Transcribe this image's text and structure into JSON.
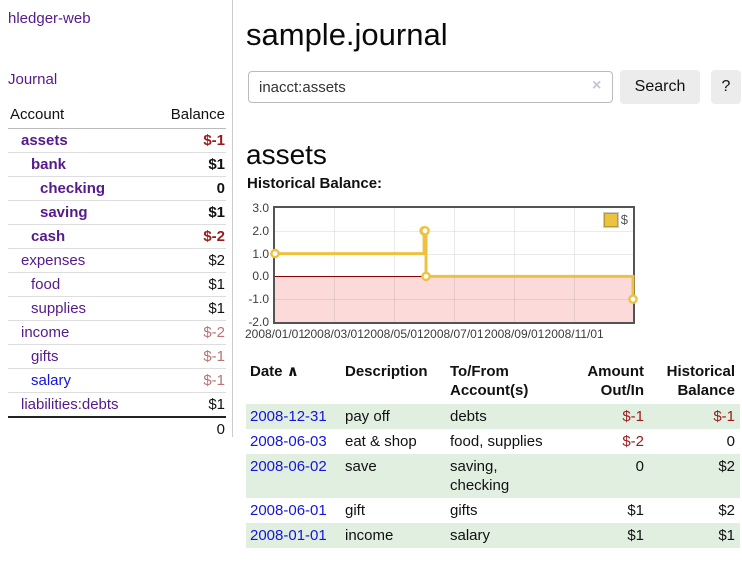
{
  "app": {
    "title": "hledger-web"
  },
  "sidebar": {
    "journal_link": "Journal",
    "accounts": {
      "headers": {
        "account": "Account",
        "balance": "Balance"
      },
      "rows": [
        {
          "account": "assets",
          "level": 1,
          "bold": true,
          "balance": "$-1",
          "balance_style": "neg"
        },
        {
          "account": "bank",
          "level": 2,
          "bold": true,
          "balance": "$1",
          "balance_style": "pos"
        },
        {
          "account": "checking",
          "level": 3,
          "bold": true,
          "balance": "0",
          "balance_style": "pos"
        },
        {
          "account": "saving",
          "level": 3,
          "bold": true,
          "balance": "$1",
          "balance_style": "pos"
        },
        {
          "account": "cash",
          "level": 2,
          "bold": true,
          "balance": "$-2",
          "balance_style": "neg"
        },
        {
          "account": "expenses",
          "level": 1,
          "bold": false,
          "balance": "$2",
          "balance_style": "pos"
        },
        {
          "account": "food",
          "level": 2,
          "bold": false,
          "balance": "$1",
          "balance_style": "pos"
        },
        {
          "account": "supplies",
          "level": 2,
          "bold": false,
          "balance": "$1",
          "balance_style": "pos"
        },
        {
          "account": "income",
          "level": 1,
          "bold": false,
          "balance": "$-2",
          "balance_style": "neg-soft"
        },
        {
          "account": "gifts",
          "level": 2,
          "bold": false,
          "balance": "$-1",
          "balance_style": "neg-soft"
        },
        {
          "account": "salary",
          "level": 2,
          "bold": false,
          "link_style": "unvisited",
          "balance": "$-1",
          "balance_style": "neg-soft"
        },
        {
          "account": "liabilities:debts",
          "level": 1,
          "bold": false,
          "balance": "$1",
          "balance_style": "pos"
        }
      ],
      "total": "0"
    }
  },
  "header": {
    "title": "sample.journal"
  },
  "search": {
    "value": "inacct:assets",
    "clear_icon": "×",
    "button_label": "Search",
    "help_label": "?"
  },
  "account_page": {
    "heading": "assets",
    "chart_label": "Historical Balance:"
  },
  "chart_data": {
    "type": "line",
    "title": "Historical Balance:",
    "step": true,
    "series": [
      {
        "name": "$",
        "points": [
          [
            "2008-01-01",
            1
          ],
          [
            "2008-06-01",
            2
          ],
          [
            "2008-06-02",
            2
          ],
          [
            "2008-06-03",
            0
          ],
          [
            "2008-12-31",
            -1
          ]
        ]
      }
    ],
    "x_range": [
      "2008-01-01",
      "2008-12-31"
    ],
    "ylim": [
      -2,
      3
    ],
    "y_ticks": [
      "3.0",
      "2.0",
      "1.0",
      "0.0",
      "-1.0",
      "-2.0"
    ],
    "x_ticks": [
      "2008/01/01",
      "2008/03/01",
      "2008/05/01",
      "2008/07/01",
      "2008/09/01",
      "2008/11/01"
    ],
    "legend": {
      "label": "$",
      "position": "top-right"
    },
    "grid": true,
    "negative_region_shaded": true
  },
  "register": {
    "columns": [
      "Date",
      "Description",
      "To/From Account(s)",
      "Amount Out/In",
      "Historical Balance"
    ],
    "sort_icon": "∧",
    "rows": [
      {
        "date": "2008-12-31",
        "description": "pay off",
        "accounts": "debts",
        "amount": "$-1",
        "amount_style": "neg",
        "balance": "$-1",
        "balance_style": "neg"
      },
      {
        "date": "2008-06-03",
        "description": "eat & shop",
        "accounts": "food, supplies",
        "amount": "$-2",
        "amount_style": "neg",
        "balance": "0",
        "balance_style": "plain"
      },
      {
        "date": "2008-06-02",
        "description": "save",
        "accounts": "saving,\nchecking",
        "amount": "0",
        "amount_style": "plain",
        "balance": "$2",
        "balance_style": "plain"
      },
      {
        "date": "2008-06-01",
        "description": "gift",
        "accounts": "gifts",
        "amount": "$1",
        "amount_style": "plain",
        "balance": "$2",
        "balance_style": "plain"
      },
      {
        "date": "2008-01-01",
        "description": "income",
        "accounts": "salary",
        "amount": "$1",
        "amount_style": "plain",
        "balance": "$1",
        "balance_style": "plain"
      }
    ]
  },
  "colors": {
    "link_visited": "#551a8b",
    "link_unvisited": "#1414dd",
    "negative": "#9b1a1a",
    "negative_muted": "#bb7373",
    "row_shade": "#e1efe1",
    "chart_line": "#edc240",
    "chart_negative_fill": "#fcdada",
    "zero_line": "#8b0000",
    "button_bg": "#ececec"
  }
}
